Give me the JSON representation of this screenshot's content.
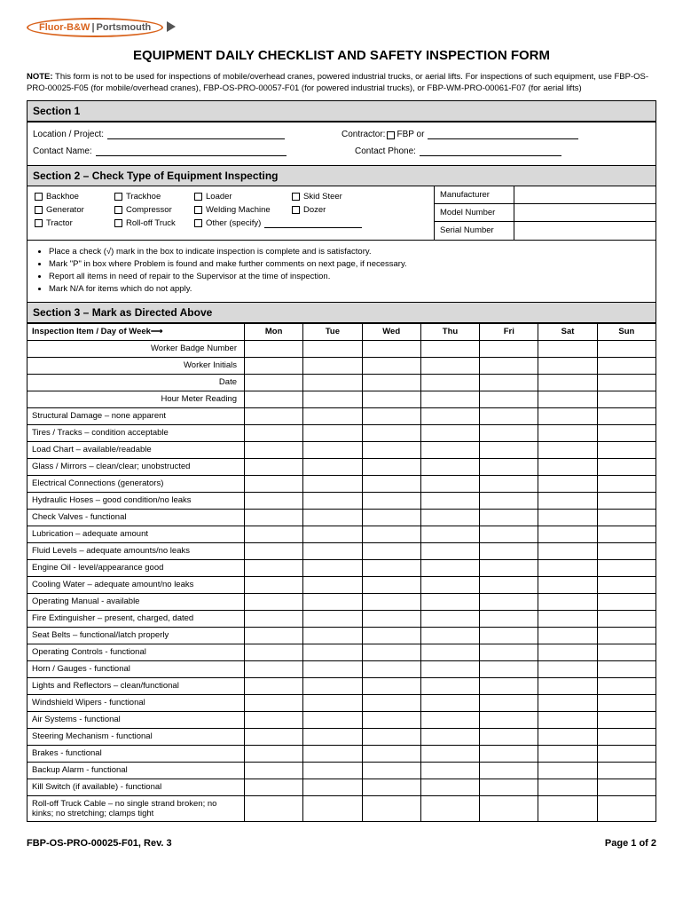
{
  "logo": {
    "text1": "Fluor-B&W",
    "text2": "Portsmouth"
  },
  "title": "EQUIPMENT DAILY CHECKLIST AND SAFETY INSPECTION FORM",
  "note": {
    "label": "NOTE:",
    "text": " This form is not to be used for inspections of mobile/overhead cranes, powered industrial trucks, or aerial lifts.  For inspections of such equipment, use FBP-OS-PRO-00025-F05 (for mobile/overhead cranes), FBP-OS-PRO-00057-F01 (for powered industrial trucks), or FBP-WM-PRO-00061-F07 (for aerial lifts)"
  },
  "section1": {
    "header": "Section 1",
    "location_label": "Location / Project:",
    "contractor_label": "Contractor:",
    "fbp_label": "FBP or",
    "contact_name_label": "Contact Name:",
    "contact_phone_label": "Contact Phone:"
  },
  "section2": {
    "header": "Section 2 – Check Type of Equipment Inspecting",
    "equipment": [
      [
        "Backhoe",
        "Trackhoe",
        "Loader",
        "Skid Steer"
      ],
      [
        "Generator",
        "Compressor",
        "Welding Machine",
        "Dozer"
      ],
      [
        "Tractor",
        "Roll-off Truck",
        "Other (specify)",
        ""
      ]
    ],
    "right_labels": [
      "Manufacturer",
      "Model Number",
      "Serial Number"
    ]
  },
  "instructions": [
    "Place a check (√) mark in the box to indicate inspection is complete and is satisfactory.",
    "Mark \"P\" in box where Problem is found and make further comments on next page, if necessary.",
    "Report all items in need of repair to the Supervisor at the time of inspection.",
    "Mark N/A for items which do not apply."
  ],
  "section3": {
    "header": "Section 3 – Mark as Directed Above",
    "col_header": "Inspection Item / Day of Week",
    "arrow": "⟶",
    "days": [
      "Mon",
      "Tue",
      "Wed",
      "Thu",
      "Fri",
      "Sat",
      "Sun"
    ],
    "header_rows": [
      "Worker Badge Number",
      "Worker Initials",
      "Date",
      "Hour Meter Reading"
    ],
    "items": [
      "Structural Damage – none apparent",
      "Tires / Tracks – condition acceptable",
      "Load Chart – available/readable",
      "Glass / Mirrors – clean/clear; unobstructed",
      "Electrical Connections (generators)",
      "Hydraulic Hoses – good condition/no leaks",
      "Check Valves - functional",
      "Lubrication – adequate amount",
      "Fluid Levels – adequate amounts/no leaks",
      "Engine Oil - level/appearance good",
      "Cooling Water – adequate amount/no leaks",
      "Operating Manual - available",
      "Fire Extinguisher – present, charged, dated",
      "Seat Belts – functional/latch properly",
      "Operating Controls - functional",
      "Horn / Gauges - functional",
      "Lights and Reflectors – clean/functional",
      "Windshield Wipers - functional",
      "Air Systems - functional",
      "Steering Mechanism - functional",
      "Brakes - functional",
      "Backup Alarm - functional",
      "Kill Switch (if available) - functional",
      "Roll-off Truck Cable – no single strand broken; no kinks; no stretching; clamps tight"
    ]
  },
  "footer": {
    "left": "FBP-OS-PRO-00025-F01, Rev. 3",
    "right": "Page 1 of 2"
  }
}
